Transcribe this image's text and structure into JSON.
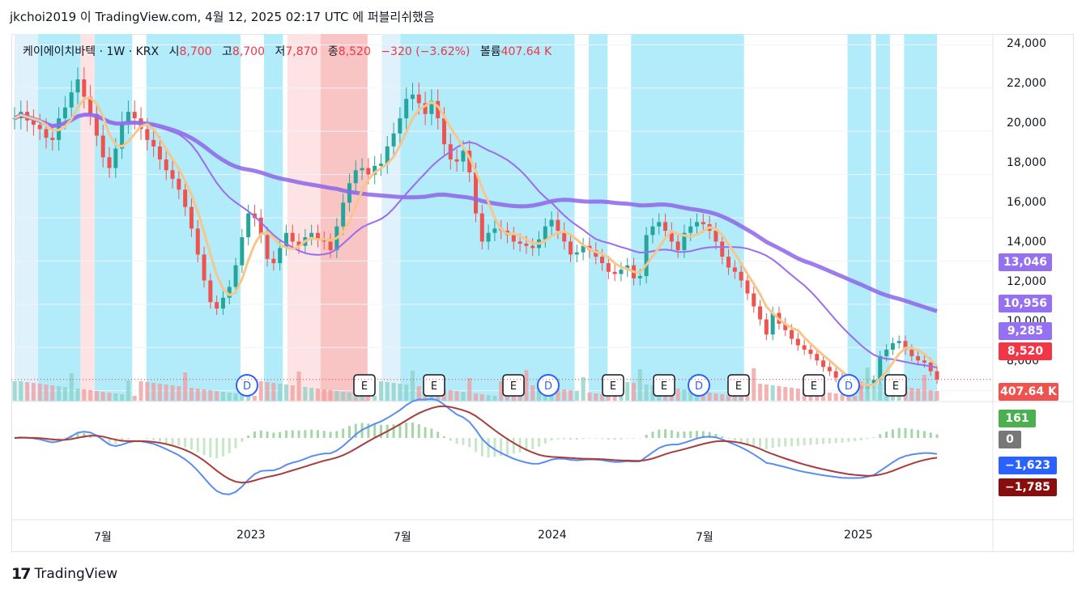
{
  "header": {
    "user": "jkchoi2019",
    "caption": "이 TradingView.com, 4월 12, 2025 02:17 UTC 에 퍼블리쉬했음"
  },
  "legend": {
    "symbol": "케이에이치바텍 · 1W · KRX",
    "open_label": "시",
    "open": "8,700",
    "high_label": "고",
    "high": "8,700",
    "low_label": "저",
    "low": "7,870",
    "close_label": "종",
    "close": "8,520",
    "change": "−320 (−3.62%)",
    "volume_label": "볼륨",
    "volume": "407.64 K"
  },
  "price_axis": [
    "24,000",
    "22,000",
    "20,000",
    "18,000",
    "16,000",
    "14,000",
    "12,000",
    "10,000",
    "8,000"
  ],
  "time_axis": [
    "7월",
    "2023",
    "7월",
    "2024",
    "7월",
    "2025"
  ],
  "tags": {
    "ma_long": "13,046",
    "ma_mid": "10,956",
    "ma_short": "9,285",
    "last_price": "8,520",
    "volume": "407.64 K",
    "macd_hist": "161",
    "zero": "0",
    "macd": "−1,623",
    "signal": "−1,785"
  },
  "events": [
    "D",
    "E",
    "E",
    "E",
    "D",
    "E",
    "E",
    "D",
    "E",
    "E",
    "D",
    "E"
  ],
  "footer": {
    "brand": "TradingView"
  },
  "colors": {
    "up": "#26a69a",
    "down": "#ef5350",
    "ma_long": "#8c66e8",
    "ma_mid": "#9b6cf0",
    "ma_red": "#ff0000",
    "ma_orange": "#f7c68b",
    "macd": "#5b8def",
    "signal": "#a83c3c",
    "bg_blue": "#b2ebf9",
    "bg_pink": "#fde3e3",
    "bg_red": "#f9c4c4",
    "bg_light": "#dff1fb"
  },
  "chart_data": {
    "type": "candlestick",
    "symbol": "케이에이치바텍 · 1W · KRX",
    "ylim": [
      7500,
      24500
    ],
    "x_labels": [
      "7월",
      "2023",
      "7월",
      "2024",
      "7월",
      "2025"
    ],
    "close_weekly": [
      20600,
      20900,
      20500,
      20300,
      20100,
      19700,
      19600,
      20600,
      21100,
      21800,
      22400,
      21600,
      20800,
      19800,
      18800,
      18300,
      19200,
      20400,
      20900,
      20600,
      20100,
      19600,
      19300,
      18700,
      18200,
      17800,
      17300,
      16500,
      15500,
      14300,
      13100,
      12100,
      11800,
      12300,
      12800,
      13800,
      15100,
      16200,
      16000,
      15200,
      14100,
      13900,
      14600,
      15300,
      14900,
      14700,
      15100,
      15300,
      15000,
      14900,
      14500,
      15600,
      16700,
      17600,
      18200,
      18300,
      18000,
      18400,
      18500,
      19300,
      19900,
      20600,
      21500,
      21700,
      21300,
      20800,
      21400,
      20600,
      19400,
      18700,
      18600,
      19100,
      18100,
      16200,
      14900,
      15300,
      15500,
      15400,
      15200,
      14900,
      14800,
      14700,
      14600,
      15000,
      15600,
      15900,
      15400,
      14900,
      14300,
      14400,
      14700,
      14500,
      14200,
      13900,
      13500,
      13400,
      13600,
      13800,
      13200,
      13300,
      15200,
      15600,
      15800,
      15400,
      14900,
      14500,
      15300,
      15600,
      15800,
      15700,
      15400,
      14900,
      14200,
      13700,
      13500,
      13100,
      12500,
      11900,
      11300,
      10600,
      11600,
      11100,
      10800,
      10400,
      10100,
      9900,
      9700,
      9400,
      9100,
      8900,
      8600,
      8400,
      8300,
      8200,
      8100,
      8300,
      8500,
      9600,
      9900,
      10200,
      10300,
      9900,
      9600,
      9400,
      9300,
      8900,
      8520
    ],
    "ma_long_end": 13046,
    "ma_mid_end": 10956,
    "ma_short_end": 9285,
    "last": 8520,
    "volume_last": "407.64 K",
    "macd_end": -1623,
    "signal_end": -1785,
    "hist_end": 161
  }
}
